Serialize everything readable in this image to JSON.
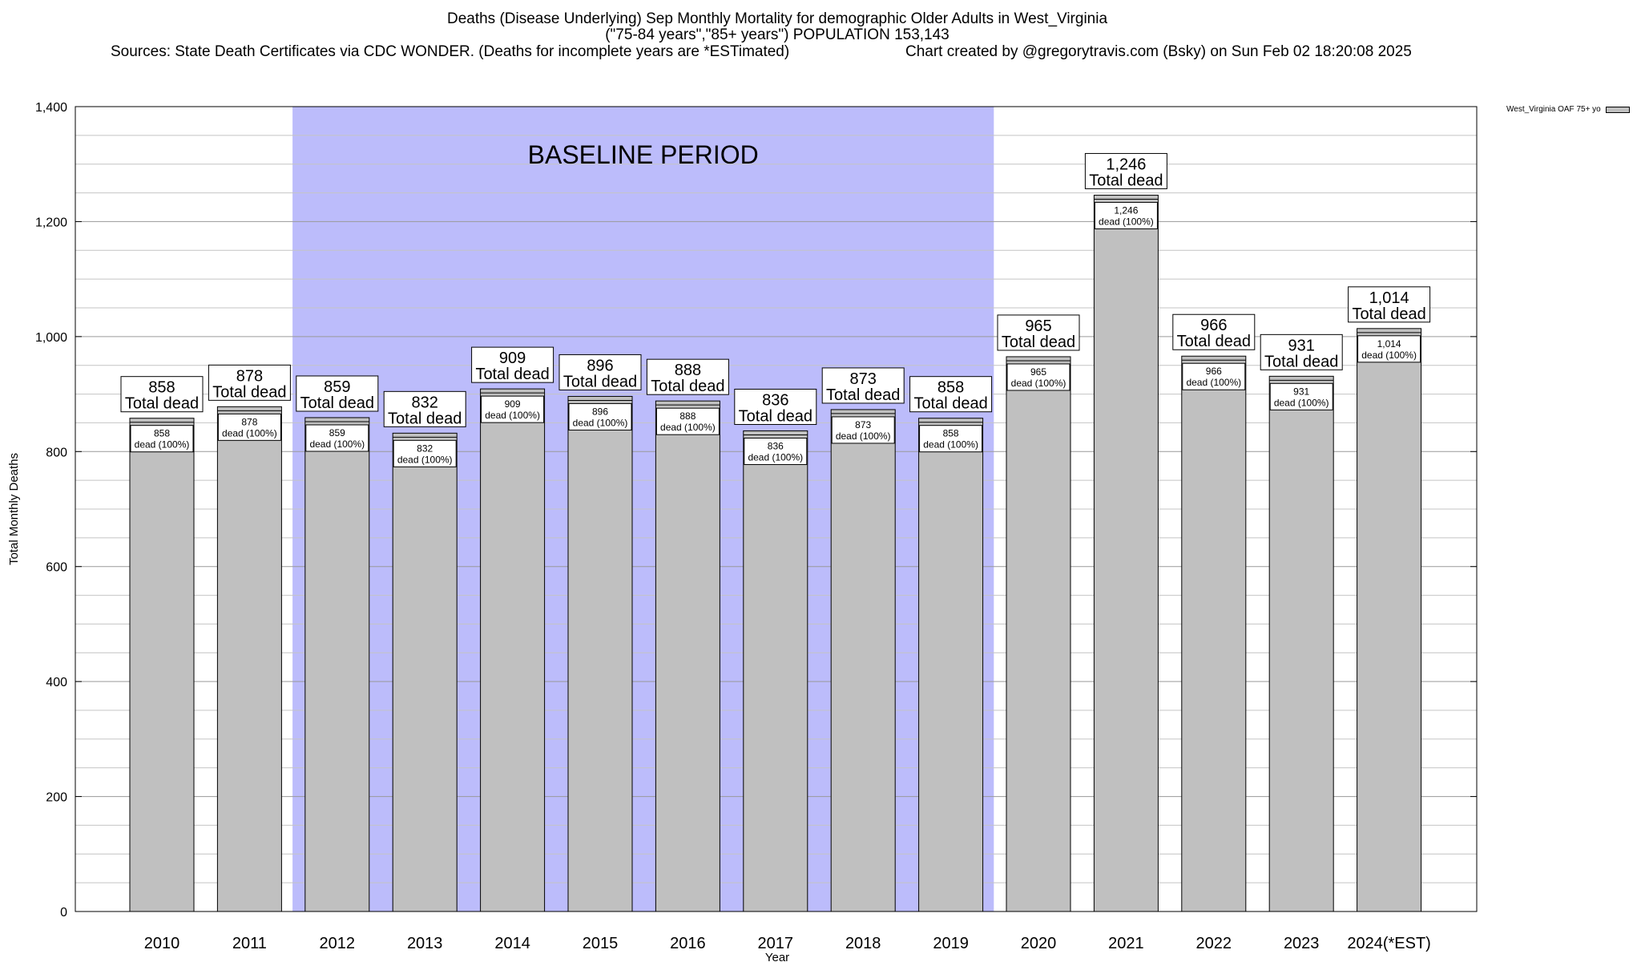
{
  "chart_data": {
    "type": "bar",
    "title": "Deaths (Disease Underlying) Sep Monthly Mortality for demographic Older Adults in West_Virginia",
    "subtitle": "(\"75-84 years\",\"85+ years\") POPULATION 153,143",
    "sources": "Sources: State Death Certificates via CDC WONDER. (Deaths for incomplete years are *ESTimated)",
    "credit": "Chart created by @gregorytravis.com (Bsky) on Sun Feb 02 18:20:08 2025",
    "xlabel": "Year",
    "ylabel": "Total Monthly Deaths",
    "ylim": [
      0,
      1400
    ],
    "y_ticks": [
      0,
      200,
      400,
      600,
      800,
      1000,
      1200,
      1400
    ],
    "y_tick_labels": [
      "0",
      "200",
      "400",
      "600",
      "800",
      "1,000",
      "1,200",
      "1,400"
    ],
    "grid": true,
    "legend": {
      "placement": "top-right",
      "label": "West_Virginia OAF 75+ yo",
      "color": "#c0c0c0"
    },
    "baseline": {
      "label": "BASELINE PERIOD",
      "start": "2012",
      "end": "2019",
      "color": "#bcbcfb"
    },
    "bar_color": "#c0c0c0",
    "total_dead_label": "Total dead",
    "inner_label": "dead (100%)",
    "categories": [
      "2010",
      "2011",
      "2012",
      "2013",
      "2014",
      "2015",
      "2016",
      "2017",
      "2018",
      "2019",
      "2020",
      "2021",
      "2022",
      "2023",
      "2024(*EST)"
    ],
    "values": [
      858,
      878,
      859,
      832,
      909,
      896,
      888,
      836,
      873,
      858,
      965,
      1246,
      966,
      931,
      1014
    ],
    "value_labels": [
      "858",
      "878",
      "859",
      "832",
      "909",
      "896",
      "888",
      "836",
      "873",
      "858",
      "965",
      "1,246",
      "966",
      "931",
      "1,014"
    ]
  }
}
